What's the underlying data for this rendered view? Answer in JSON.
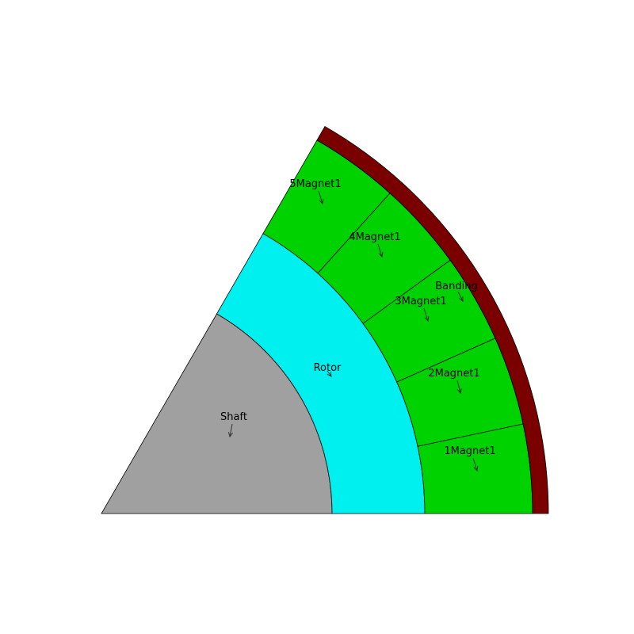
{
  "diagram": {
    "sector_angle_deg": 60,
    "regions": [
      {
        "id": "shaft",
        "label": "Shaft",
        "color": "#a0a0a0"
      },
      {
        "id": "rotor",
        "label": "Rotor",
        "color": "#00f0f0"
      },
      {
        "id": "magnets",
        "color": "#00d200",
        "count": 5
      },
      {
        "id": "banding",
        "label": "Banding",
        "color": "#7a0000"
      }
    ],
    "magnet_labels": [
      "1Magnet1",
      "2Magnet1",
      "3Magnet1",
      "4Magnet1",
      "5Magnet1"
    ]
  }
}
